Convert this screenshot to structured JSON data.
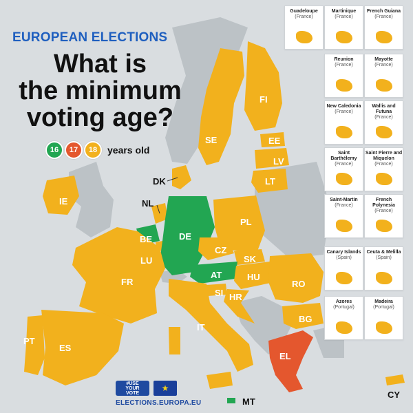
{
  "header": {
    "kicker": "EUROPEAN ELECTIONS",
    "title_lines": [
      "What is",
      "the minimum",
      "voting age?"
    ]
  },
  "legend": {
    "items": [
      {
        "label": "16",
        "color": "#22a652"
      },
      {
        "label": "17",
        "color": "#e4572e"
      },
      {
        "label": "18",
        "color": "#f2b11d"
      }
    ],
    "unit": "years old"
  },
  "colors": {
    "age_16": "#22a652",
    "age_17": "#e4572e",
    "age_18": "#f2b11d",
    "non_eu_land": "#bcc2c6",
    "sea": "#d9dde0"
  },
  "countries": [
    {
      "code": "FI",
      "age": 18
    },
    {
      "code": "SE",
      "age": 18
    },
    {
      "code": "EE",
      "age": 18
    },
    {
      "code": "LV",
      "age": 18
    },
    {
      "code": "LT",
      "age": 18
    },
    {
      "code": "DK",
      "age": 18
    },
    {
      "code": "IE",
      "age": 18
    },
    {
      "code": "NL",
      "age": 18
    },
    {
      "code": "BE",
      "age": 16
    },
    {
      "code": "LU",
      "age": 18
    },
    {
      "code": "DE",
      "age": 16
    },
    {
      "code": "PL",
      "age": 18
    },
    {
      "code": "CZ",
      "age": 18
    },
    {
      "code": "SK",
      "age": 18
    },
    {
      "code": "AT",
      "age": 16
    },
    {
      "code": "HU",
      "age": 18
    },
    {
      "code": "FR",
      "age": 18
    },
    {
      "code": "SI",
      "age": 18
    },
    {
      "code": "HR",
      "age": 18
    },
    {
      "code": "RO",
      "age": 18
    },
    {
      "code": "BG",
      "age": 18
    },
    {
      "code": "IT",
      "age": 18
    },
    {
      "code": "PT",
      "age": 18
    },
    {
      "code": "ES",
      "age": 18
    },
    {
      "code": "EL",
      "age": 17
    },
    {
      "code": "MT",
      "age": 16
    },
    {
      "code": "CY",
      "age": 18
    }
  ],
  "insets": [
    {
      "name": "Guadeloupe",
      "country": "(France)"
    },
    {
      "name": "Martinique",
      "country": "(France)"
    },
    {
      "name": "French Guiana",
      "country": "(France)"
    },
    {
      "name": "Reunion",
      "country": "(France)"
    },
    {
      "name": "Mayotte",
      "country": "(France)"
    },
    {
      "name": "New Caledonia",
      "country": "(France)"
    },
    {
      "name": "Wallis and Futuna",
      "country": "(France)"
    },
    {
      "name": "Saint Barthélemy",
      "country": "(France)"
    },
    {
      "name": "Saint Pierre and Miquelon",
      "country": "(France)"
    },
    {
      "name": "Saint-Martin",
      "country": "(France)"
    },
    {
      "name": "French Polynesia",
      "country": "(France)"
    },
    {
      "name": "Canary Islands",
      "country": "(Spain)"
    },
    {
      "name": "Ceuta & Melilla",
      "country": "(Spain)"
    },
    {
      "name": "Azores",
      "country": "(Portugal)"
    },
    {
      "name": "Madeira",
      "country": "(Portugal)"
    }
  ],
  "footer": {
    "badge_lines": [
      "#USE",
      "YOUR",
      "VOTE"
    ],
    "website": "ELECTIONS.EUROPA.EU"
  }
}
